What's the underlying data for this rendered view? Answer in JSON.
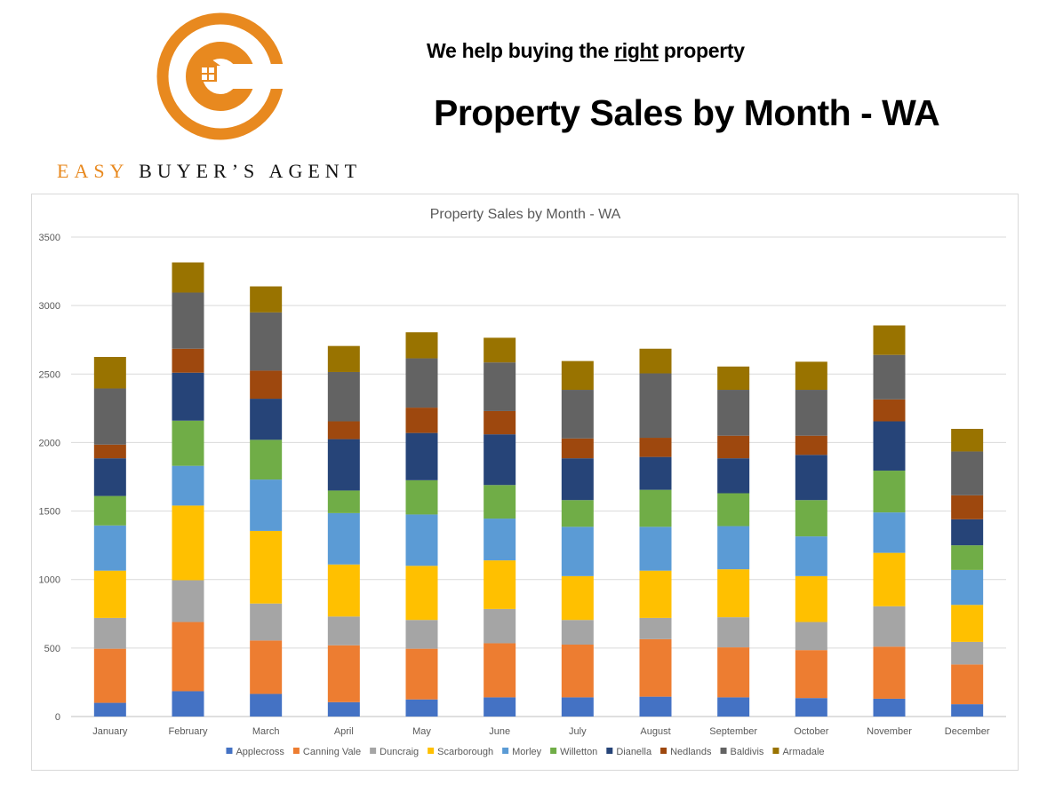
{
  "header": {
    "brand_part1": "EASY",
    "brand_part2": "BUYER’S AGENT",
    "tagline_before": "We help buying the ",
    "tagline_emphasis": "right",
    "tagline_after": " property",
    "page_title": "Property Sales by Month - WA"
  },
  "colors": {
    "brand_orange": "#e8891f",
    "text_dark": "#111111"
  },
  "chart_data": {
    "type": "bar",
    "stacked": true,
    "title": "Property Sales by Month - WA",
    "xlabel": "",
    "ylabel": "",
    "ylim": [
      0,
      3500
    ],
    "yticks": [
      0,
      500,
      1000,
      1500,
      2000,
      2500,
      3000,
      3500
    ],
    "grid": true,
    "legend_position": "bottom",
    "categories": [
      "January",
      "February",
      "March",
      "April",
      "May",
      "June",
      "July",
      "August",
      "September",
      "October",
      "November",
      "December"
    ],
    "series": [
      {
        "name": "Applecross",
        "color": "#4472c4",
        "values": [
          100,
          185,
          165,
          105,
          125,
          140,
          140,
          145,
          140,
          135,
          130,
          90
        ]
      },
      {
        "name": "Canning Vale",
        "color": "#ed7d31",
        "values": [
          395,
          505,
          390,
          415,
          370,
          395,
          385,
          420,
          365,
          350,
          380,
          290
        ]
      },
      {
        "name": "Duncraig",
        "color": "#a5a5a5",
        "values": [
          225,
          305,
          270,
          210,
          210,
          250,
          180,
          155,
          220,
          205,
          295,
          165
        ]
      },
      {
        "name": "Scarborough",
        "color": "#ffc000",
        "values": [
          345,
          545,
          530,
          380,
          395,
          355,
          320,
          345,
          350,
          335,
          390,
          270
        ]
      },
      {
        "name": "Morley",
        "color": "#5b9bd5",
        "values": [
          330,
          290,
          375,
          375,
          375,
          305,
          360,
          320,
          315,
          290,
          295,
          255
        ]
      },
      {
        "name": "Willetton",
        "color": "#70ad47",
        "values": [
          215,
          330,
          290,
          165,
          250,
          245,
          195,
          270,
          240,
          265,
          305,
          180
        ]
      },
      {
        "name": "Dianella",
        "color": "#264478",
        "values": [
          275,
          350,
          300,
          375,
          345,
          370,
          305,
          240,
          255,
          330,
          360,
          190
        ]
      },
      {
        "name": "Nedlands",
        "color": "#9e480e",
        "values": [
          100,
          175,
          205,
          130,
          185,
          170,
          145,
          140,
          165,
          140,
          160,
          175
        ]
      },
      {
        "name": "Baldivis",
        "color": "#636363",
        "values": [
          410,
          410,
          425,
          360,
          360,
          355,
          355,
          470,
          335,
          335,
          325,
          320
        ]
      },
      {
        "name": "Armadale",
        "color": "#997300",
        "values": [
          230,
          220,
          190,
          190,
          190,
          180,
          210,
          180,
          170,
          205,
          215,
          165
        ]
      }
    ]
  }
}
